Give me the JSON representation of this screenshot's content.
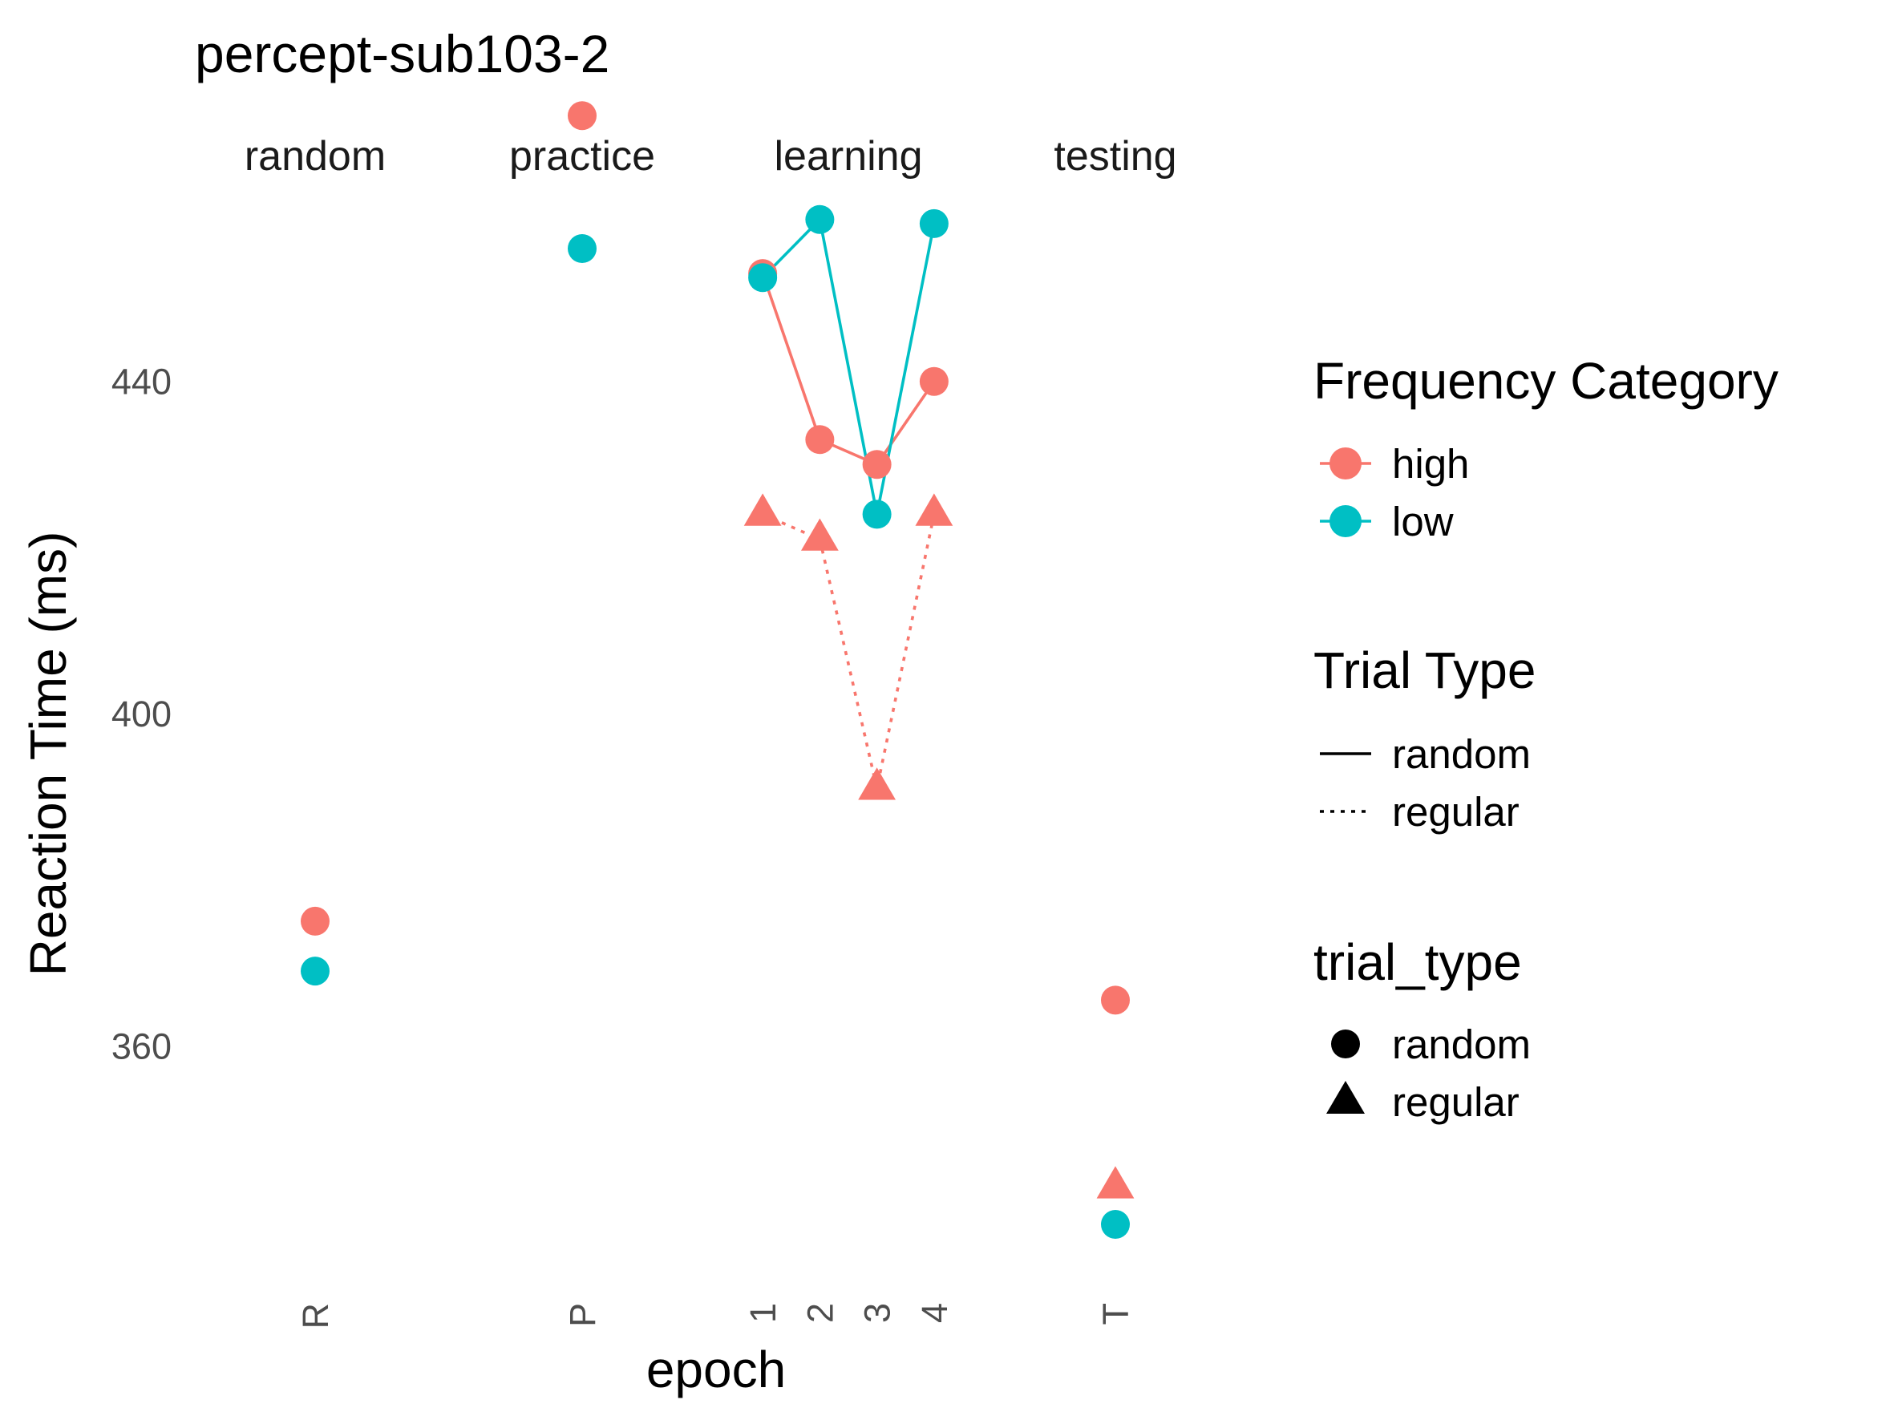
{
  "chart_data": {
    "type": "line",
    "title": "percept-sub103-2",
    "xlabel": "epoch",
    "ylabel": "Reaction Time (ms)",
    "ylim": [
      330,
      470
    ],
    "y_ticks": [
      360,
      400,
      440
    ],
    "grid": false,
    "facets": [
      {
        "label": "random",
        "categories": [
          "R"
        ]
      },
      {
        "label": "practice",
        "categories": [
          "P"
        ]
      },
      {
        "label": "learning",
        "categories": [
          "1",
          "2",
          "3",
          "4"
        ]
      },
      {
        "label": "testing",
        "categories": [
          "T"
        ]
      }
    ],
    "series": [
      {
        "frequency": "high",
        "trial_type": "random",
        "color": "#F8766D",
        "points": [
          [
            "random",
            "R",
            375
          ],
          [
            "practice",
            "P",
            472
          ],
          [
            "learning",
            "1",
            453
          ],
          [
            "learning",
            "2",
            433
          ],
          [
            "learning",
            "3",
            430
          ],
          [
            "learning",
            "4",
            440
          ],
          [
            "testing",
            "T",
            365.5
          ]
        ]
      },
      {
        "frequency": "low",
        "trial_type": "random",
        "color": "#00BFC4",
        "points": [
          [
            "random",
            "R",
            369
          ],
          [
            "practice",
            "P",
            456
          ],
          [
            "learning",
            "1",
            452.5
          ],
          [
            "learning",
            "2",
            459.5
          ],
          [
            "learning",
            "3",
            424
          ],
          [
            "learning",
            "4",
            459
          ],
          [
            "testing",
            "T",
            338.5
          ]
        ]
      },
      {
        "frequency": "high",
        "trial_type": "regular",
        "color": "#F8766D",
        "points": [
          [
            "learning",
            "1",
            424
          ],
          [
            "learning",
            "2",
            421
          ],
          [
            "learning",
            "3",
            391
          ],
          [
            "learning",
            "4",
            424
          ],
          [
            "testing",
            "T",
            343
          ]
        ]
      }
    ],
    "legends": [
      {
        "title": "Frequency Category",
        "placement": "right",
        "items": [
          {
            "label": "high",
            "color": "#F8766D"
          },
          {
            "label": "low",
            "color": "#00BFC4"
          }
        ]
      },
      {
        "title": "Trial Type",
        "placement": "right",
        "items": [
          {
            "label": "random",
            "linetype": "solid"
          },
          {
            "label": "regular",
            "linetype": "dotted"
          }
        ]
      },
      {
        "title": "trial_type",
        "placement": "right",
        "items": [
          {
            "label": "random",
            "shape": "circle"
          },
          {
            "label": "regular",
            "shape": "triangle"
          }
        ]
      }
    ]
  }
}
